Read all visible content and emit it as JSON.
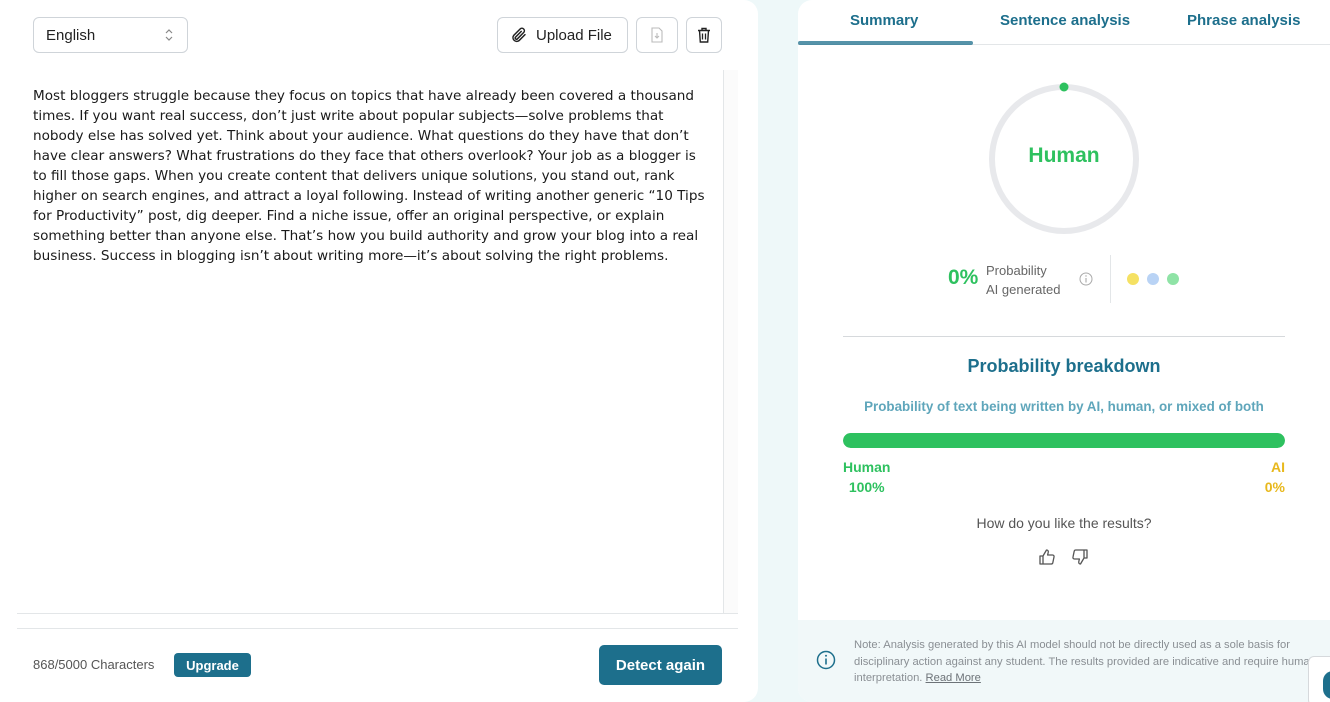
{
  "editor": {
    "language": "English",
    "upload_label": "Upload File",
    "text": "Most bloggers struggle because they focus on topics that have already been covered a thousand times. If you want real success, don’t just write about popular subjects—solve problems that nobody else has solved yet. Think about your audience. What questions do they have that don’t have clear answers? What frustrations do they face that others overlook? Your job as a blogger is to fill those gaps. When you create content that delivers unique solutions, you stand out, rank higher on search engines, and attract a loyal following. Instead of writing another generic “10 Tips for Productivity” post, dig deeper. Find a niche issue, offer an original perspective, or explain something better than anyone else. That’s how you build authority and grow your blog into a real business. Success in blogging isn’t about writing more—it’s about solving the right problems.",
    "char_count": "868/5000 Characters",
    "upgrade_label": "Upgrade",
    "detect_label": "Detect again"
  },
  "tabs": [
    {
      "label": "Summary",
      "active": true
    },
    {
      "label": "Sentence analysis",
      "active": false
    },
    {
      "label": "Phrase analysis",
      "active": false
    }
  ],
  "summary": {
    "verdict": "Human",
    "ai_probability": "0%",
    "probability_label_line1": "Probability",
    "probability_label_line2": "AI generated",
    "ai_fraction": 0
  },
  "breakdown": {
    "title": "Probability breakdown",
    "subtitle": "Probability of text being written by AI, human, or mixed of both",
    "human_label": "Human",
    "human_value": "100%",
    "human_fraction": 1.0,
    "ai_label": "AI",
    "ai_value": "0%"
  },
  "feedback": {
    "question": "How do you like the results?"
  },
  "note": {
    "text": "Note: Analysis generated by this AI model should not be directly used as a sole basis for disciplinary action against any student. The results provided are indicative and require human interpretation.",
    "link": "Read More"
  },
  "colors": {
    "accent": "#1d6f8c",
    "human": "#2ec15f",
    "ai": "#e8b81c"
  }
}
